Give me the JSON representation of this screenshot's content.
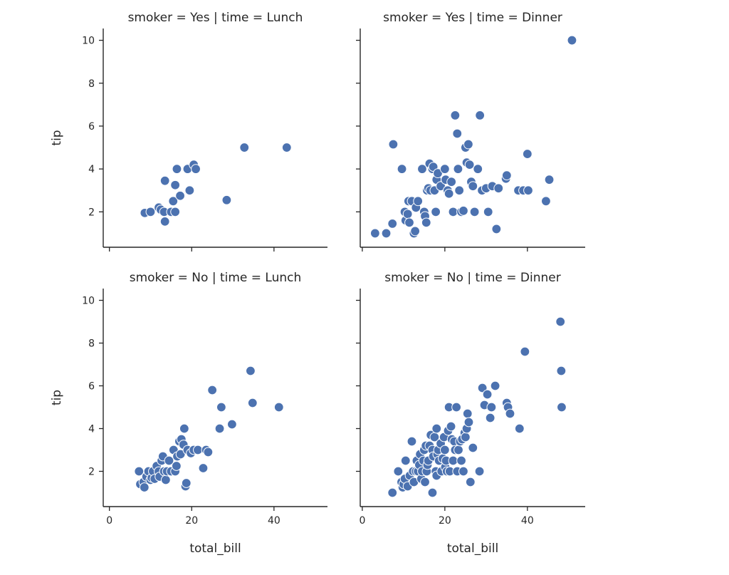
{
  "chart_data": [
    {
      "type": "scatter",
      "title": "smoker = Yes | time = Lunch",
      "xlabel": "",
      "ylabel": "tip",
      "xlim": [
        -1.5,
        53
      ],
      "ylim": [
        0.35,
        10.55
      ],
      "xticks": [
        0,
        20,
        40
      ],
      "xtick_labels": [
        "",
        "",
        ""
      ],
      "yticks": [
        2,
        4,
        6,
        8,
        10
      ],
      "ytick_labels": [
        "2",
        "4",
        "6",
        "8",
        "10"
      ],
      "grid": false,
      "series": [
        {
          "color": "#4c72b0",
          "x": [
            8.6,
            10.0,
            12.0,
            12.5,
            13.3,
            13.5,
            13.5,
            15.0,
            15.5,
            16.0,
            16.0,
            16.4,
            17.2,
            19.0,
            19.5,
            20.5,
            21.0,
            28.5,
            32.8,
            43.1
          ],
          "y": [
            1.95,
            2.0,
            2.2,
            2.1,
            2.0,
            3.45,
            1.55,
            2.0,
            2.5,
            2.0,
            3.25,
            4.0,
            2.75,
            4.0,
            3.0,
            4.2,
            4.0,
            2.55,
            5.0,
            5.0
          ]
        }
      ]
    },
    {
      "type": "scatter",
      "title": "smoker = Yes | time = Dinner",
      "xlabel": "",
      "ylabel": "",
      "xlim": [
        -0.5,
        54
      ],
      "ylim": [
        0.35,
        10.55
      ],
      "xticks": [
        0,
        20,
        40
      ],
      "xtick_labels": [
        "",
        "",
        ""
      ],
      "yticks": [
        2,
        4,
        6,
        8,
        10
      ],
      "ytick_labels": [
        "",
        "",
        "",
        "",
        ""
      ],
      "grid": false,
      "series": [
        {
          "color": "#4c72b0",
          "x": [
            3.1,
            5.8,
            7.3,
            7.5,
            9.6,
            10.3,
            10.5,
            11.0,
            11.2,
            11.4,
            12.0,
            12.5,
            12.8,
            13.0,
            13.5,
            14.5,
            15.0,
            15.2,
            15.5,
            15.7,
            16.0,
            16.3,
            16.5,
            17.0,
            17.2,
            17.5,
            17.8,
            18.0,
            18.3,
            19.0,
            20.0,
            20.2,
            20.7,
            21.0,
            21.6,
            22.0,
            22.5,
            23.0,
            23.2,
            23.5,
            24.0,
            24.5,
            25.0,
            25.3,
            25.7,
            26.0,
            26.4,
            26.8,
            27.2,
            28.0,
            28.5,
            29.0,
            30.0,
            30.5,
            31.5,
            32.5,
            33.0,
            34.8,
            35.0,
            37.8,
            39.0,
            40.0,
            40.2,
            44.5,
            45.3,
            50.8
          ],
          "y": [
            1.0,
            1.0,
            1.45,
            5.15,
            4.0,
            2.0,
            1.6,
            1.9,
            2.5,
            1.5,
            2.5,
            1.0,
            1.1,
            2.2,
            2.5,
            4.0,
            2.0,
            1.8,
            1.5,
            3.0,
            3.1,
            4.25,
            3.0,
            4.0,
            4.1,
            3.0,
            2.0,
            3.5,
            3.8,
            3.2,
            4.0,
            3.5,
            3.0,
            2.85,
            3.4,
            2.0,
            6.5,
            5.65,
            4.0,
            3.0,
            2.0,
            2.05,
            5.0,
            4.3,
            5.15,
            4.2,
            3.4,
            3.2,
            2.0,
            4.0,
            6.5,
            3.0,
            3.1,
            2.0,
            3.2,
            1.2,
            3.1,
            3.55,
            3.7,
            3.0,
            3.0,
            4.7,
            3.0,
            2.5,
            3.5,
            10.0
          ]
        }
      ]
    },
    {
      "type": "scatter",
      "title": "smoker = No | time = Lunch",
      "xlabel": "total_bill",
      "ylabel": "tip",
      "xlim": [
        -1.5,
        53
      ],
      "ylim": [
        0.35,
        10.55
      ],
      "xticks": [
        0,
        20,
        40
      ],
      "xtick_labels": [
        "0",
        "20",
        "40"
      ],
      "yticks": [
        2,
        4,
        6,
        8,
        10
      ],
      "ytick_labels": [
        "2",
        "4",
        "6",
        "8",
        "10"
      ],
      "grid": false,
      "series": [
        {
          "color": "#4c72b0",
          "x": [
            7.2,
            7.5,
            8.3,
            8.5,
            9.0,
            9.5,
            10.0,
            10.3,
            10.6,
            11.0,
            11.5,
            12.0,
            12.2,
            12.7,
            13.0,
            13.3,
            13.7,
            14.0,
            14.5,
            15.0,
            15.6,
            16.0,
            16.3,
            16.5,
            17.0,
            17.3,
            17.5,
            18.0,
            18.2,
            18.5,
            18.7,
            19.0,
            19.8,
            20.5,
            21.5,
            22.8,
            23.5,
            24.0,
            25.0,
            26.8,
            27.2,
            29.8,
            34.3,
            34.8,
            41.2
          ],
          "y": [
            2.0,
            1.4,
            1.5,
            1.25,
            1.75,
            2.0,
            1.6,
            1.7,
            2.0,
            1.65,
            2.25,
            2.0,
            1.75,
            2.5,
            2.7,
            2.0,
            1.6,
            2.0,
            2.5,
            2.0,
            3.0,
            2.0,
            2.25,
            2.7,
            3.4,
            2.8,
            3.5,
            3.25,
            4.0,
            1.3,
            1.45,
            3.0,
            2.85,
            3.0,
            3.0,
            2.15,
            3.0,
            2.9,
            5.8,
            4.0,
            5.0,
            4.2,
            6.7,
            5.2,
            5.0
          ]
        }
      ]
    },
    {
      "type": "scatter",
      "title": "smoker = No | time = Dinner",
      "xlabel": "total_bill",
      "ylabel": "",
      "xlim": [
        -0.5,
        54
      ],
      "ylim": [
        0.35,
        10.55
      ],
      "xticks": [
        0,
        20,
        40
      ],
      "xtick_labels": [
        "0",
        "20",
        "40"
      ],
      "yticks": [
        2,
        4,
        6,
        8,
        10
      ],
      "ytick_labels": [
        "",
        "",
        "",
        "",
        ""
      ],
      "grid": false,
      "series": [
        {
          "color": "#4c72b0",
          "x": [
            7.3,
            8.7,
            9.5,
            9.8,
            10.0,
            10.3,
            10.5,
            11.0,
            11.5,
            12.0,
            12.3,
            12.5,
            13.0,
            13.2,
            13.5,
            13.8,
            14.0,
            14.3,
            14.5,
            14.8,
            15.0,
            15.2,
            15.4,
            15.6,
            15.8,
            16.0,
            16.3,
            16.6,
            17.0,
            17.0,
            17.2,
            17.5,
            17.8,
            18.0,
            18.0,
            18.2,
            18.4,
            18.6,
            19.0,
            19.2,
            19.5,
            19.8,
            20.0,
            20.1,
            20.3,
            20.5,
            20.8,
            21.0,
            21.2,
            21.5,
            21.7,
            22.0,
            22.3,
            22.5,
            22.8,
            23.0,
            23.3,
            23.7,
            24.0,
            24.2,
            24.5,
            24.8,
            25.0,
            25.3,
            25.5,
            25.8,
            26.2,
            26.8,
            28.4,
            29.1,
            29.6,
            30.3,
            31.0,
            31.3,
            32.2,
            35.0,
            35.3,
            35.8,
            38.1,
            39.4,
            48.0,
            48.2,
            48.3
          ],
          "y": [
            1.0,
            2.0,
            1.5,
            1.25,
            1.4,
            1.65,
            2.5,
            1.3,
            1.8,
            3.4,
            2.0,
            1.5,
            2.0,
            2.5,
            2.0,
            2.3,
            2.8,
            1.65,
            2.0,
            2.5,
            3.0,
            1.5,
            3.2,
            2.0,
            2.3,
            2.5,
            3.2,
            3.7,
            1.0,
            3.0,
            2.7,
            3.6,
            2.0,
            4.0,
            1.8,
            2.8,
            3.0,
            2.5,
            3.3,
            2.0,
            2.6,
            3.6,
            3.0,
            2.2,
            2.5,
            2.0,
            3.9,
            5.0,
            2.0,
            4.1,
            3.5,
            2.5,
            3.4,
            3.0,
            5.0,
            2.0,
            3.0,
            3.4,
            2.5,
            3.5,
            2.0,
            3.8,
            3.6,
            4.0,
            4.7,
            4.3,
            1.5,
            3.1,
            2.0,
            5.9,
            5.1,
            5.6,
            4.5,
            5.0,
            6.0,
            5.2,
            5.0,
            4.7,
            4.0,
            7.6,
            9.0,
            6.7,
            5.0
          ]
        }
      ]
    }
  ]
}
